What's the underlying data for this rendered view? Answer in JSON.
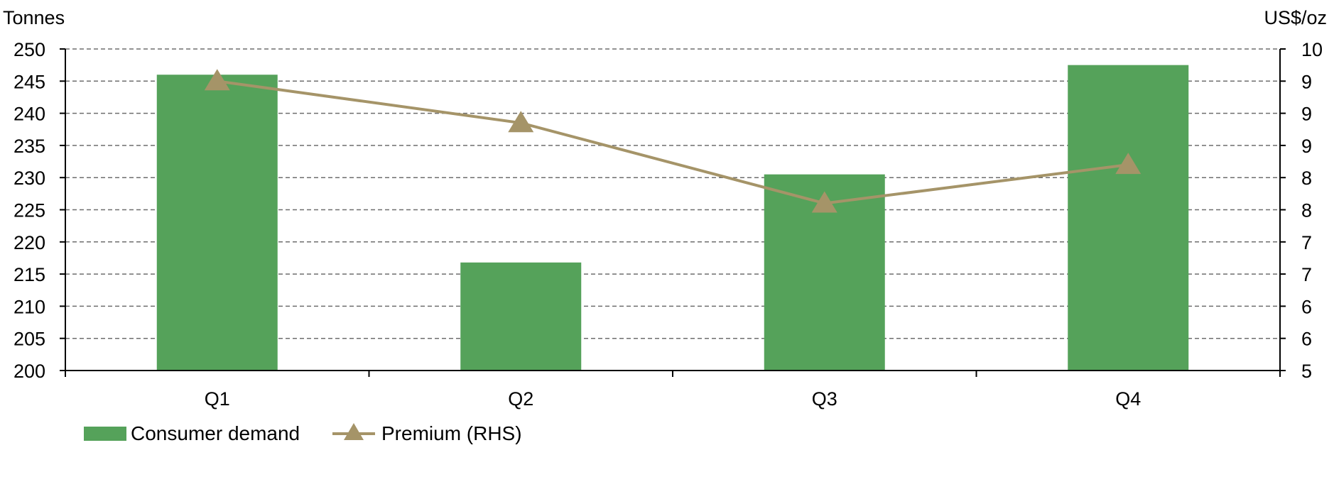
{
  "chart_data": {
    "type": "bar",
    "categories": [
      "Q1",
      "Q2",
      "Q3",
      "Q4"
    ],
    "left_axis": {
      "unit": "Tonnes",
      "ylim": [
        200,
        250
      ],
      "ticks": [
        200,
        205,
        210,
        215,
        220,
        225,
        230,
        235,
        240,
        245,
        250
      ],
      "tick_labels": [
        "200",
        "205",
        "210",
        "215",
        "220",
        "225",
        "230",
        "235",
        "240",
        "245",
        "250"
      ]
    },
    "right_axis": {
      "unit": "US$/oz",
      "ylim": [
        5,
        10
      ],
      "tick_labels": [
        "5",
        "6",
        "6",
        "7",
        "7",
        "8",
        "8",
        "9",
        "9",
        "9",
        "10"
      ]
    },
    "series": [
      {
        "name": "Consumer demand",
        "type": "bar",
        "axis": "left",
        "color": "#55A25A",
        "values": [
          246.0,
          216.8,
          230.5,
          247.5
        ]
      },
      {
        "name": "Premium (RHS)",
        "type": "line",
        "axis": "right",
        "marker": "triangle",
        "color": "#A59468",
        "values": [
          9.5,
          8.85,
          7.6,
          8.2
        ]
      }
    ],
    "grid": true,
    "grid_style": "dashed",
    "legend": "bottom-left"
  }
}
